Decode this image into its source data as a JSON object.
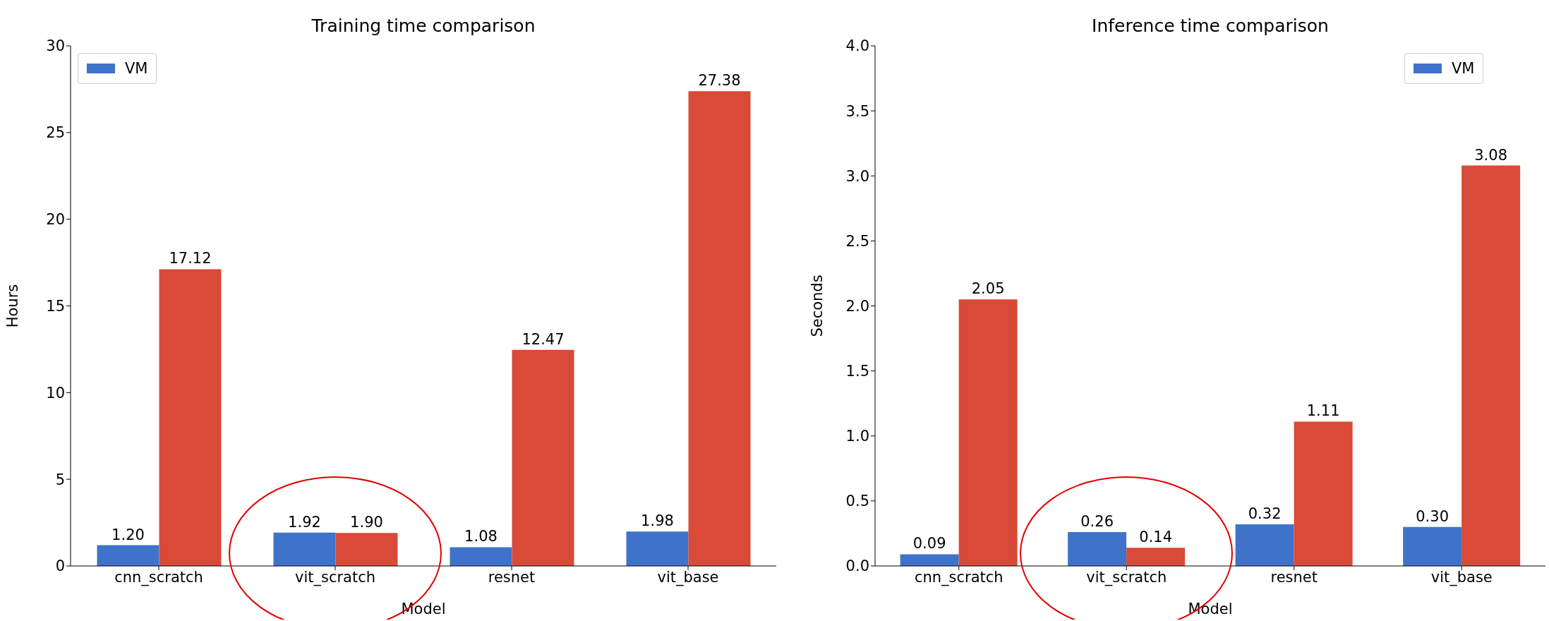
{
  "chart_data": [
    {
      "type": "bar",
      "title": "Training time comparison",
      "xlabel": "Model",
      "ylabel": "Hours",
      "categories": [
        "cnn_scratch",
        "vit_scratch",
        "resnet",
        "vit_base"
      ],
      "series": [
        {
          "name": "VM",
          "color": "#3f73c9",
          "values": [
            1.2,
            1.92,
            1.08,
            1.98
          ],
          "value_labels": [
            "1.20",
            "1.92",
            "1.08",
            "1.98"
          ]
        },
        {
          "color": "#d94a38",
          "values": [
            17.12,
            1.9,
            12.47,
            27.38
          ],
          "value_labels": [
            "17.12",
            "1.90",
            "12.47",
            "27.38"
          ]
        }
      ],
      "ylim": [
        0,
        30
      ],
      "yticks": [
        0,
        5,
        10,
        15,
        20,
        25,
        30
      ],
      "grid": false,
      "legend": "top left"
    },
    {
      "type": "bar",
      "title": "Inference time comparison",
      "xlabel": "Model",
      "ylabel": "Seconds",
      "categories": [
        "cnn_scratch",
        "vit_scratch",
        "resnet",
        "vit_base"
      ],
      "series": [
        {
          "name": "VM",
          "color": "#3f73c9",
          "values": [
            0.09,
            0.26,
            0.32,
            0.3
          ],
          "value_labels": [
            "0.09",
            "0.26",
            "0.32",
            "0.30"
          ]
        },
        {
          "color": "#d94a38",
          "values": [
            2.05,
            0.14,
            1.11,
            3.08
          ],
          "value_labels": [
            "2.05",
            "0.14",
            "1.11",
            "3.08"
          ]
        }
      ],
      "ylim": [
        0,
        4
      ],
      "yticks": [
        {
          "value": 0,
          "label": "0.0"
        },
        {
          "value": 0.5,
          "label": "0.5"
        },
        {
          "value": 1,
          "label": "1.0"
        },
        {
          "value": 1.5,
          "label": "1.5"
        },
        {
          "value": 2,
          "label": "2.0"
        },
        {
          "value": 2.5,
          "label": "2.5"
        },
        {
          "value": 3,
          "label": "3.0"
        },
        {
          "value": 3.5,
          "label": "3.5"
        },
        {
          "value": 4,
          "label": "4.0"
        }
      ],
      "grid": false,
      "legend": "top right"
    }
  ]
}
